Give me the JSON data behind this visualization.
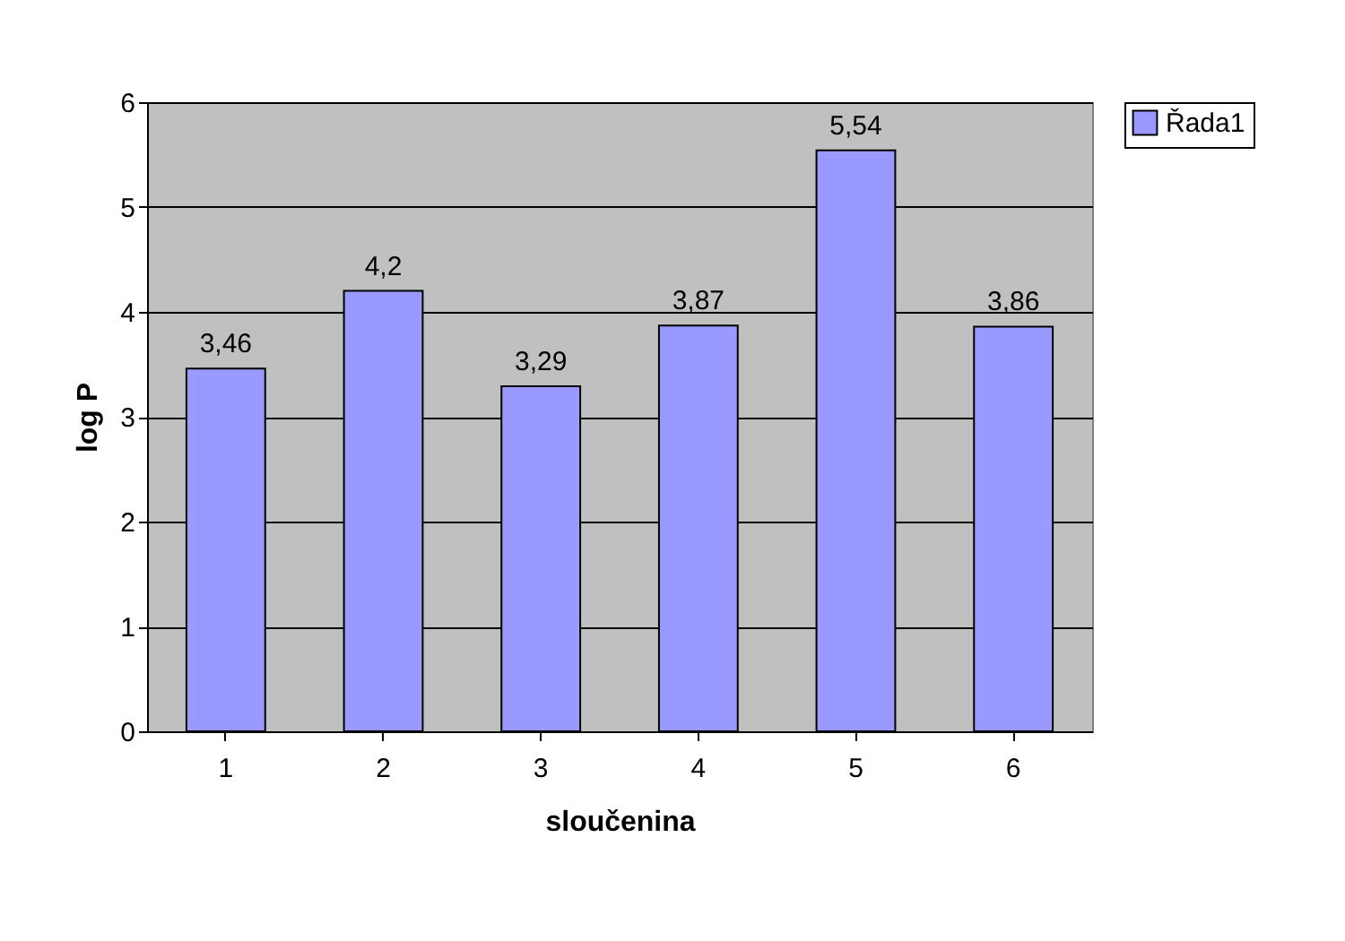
{
  "chart_data": {
    "type": "bar",
    "xlabel": "sloučenina",
    "ylabel": "log P",
    "categories": [
      "1",
      "2",
      "3",
      "4",
      "5",
      "6"
    ],
    "series": [
      {
        "name": "Řada1",
        "color": "#9999ff",
        "values": [
          3.46,
          4.2,
          3.29,
          3.87,
          5.54,
          3.86
        ],
        "value_labels": [
          "3,46",
          "4,2",
          "3,29",
          "3,87",
          "5,54",
          "3,86"
        ]
      }
    ],
    "ylim": [
      0,
      6
    ],
    "yticks": [
      0,
      1,
      2,
      3,
      4,
      5,
      6
    ],
    "grid": "y",
    "legend": "right"
  }
}
